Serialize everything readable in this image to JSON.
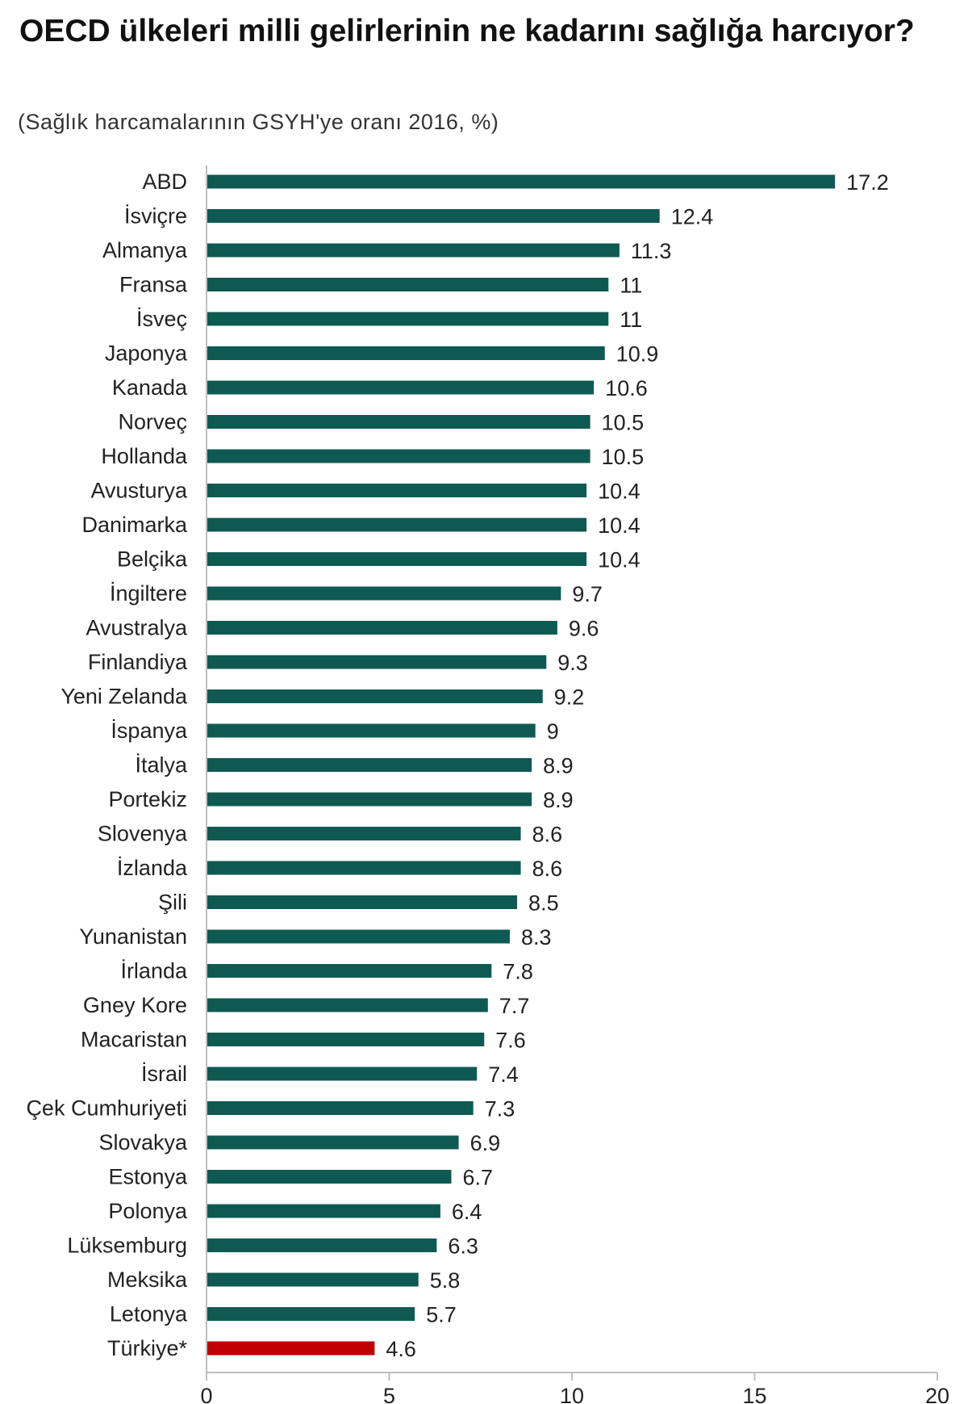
{
  "chart_data": {
    "type": "bar",
    "orientation": "horizontal",
    "title": "OECD ülkeleri milli gelirlerinin ne kadarını sağlığa harcıyor?",
    "subtitle": "(Sağlık harcamalarının GSYH'ye oranı 2016, %)",
    "xlim": [
      0,
      20
    ],
    "xticks": [
      0,
      5,
      10,
      15,
      20
    ],
    "colors": {
      "default": "#0e5a52",
      "highlight": "#c00000"
    },
    "categories": [
      "ABD",
      "İsviçre",
      "Almanya",
      "Fransa",
      "İsveç",
      "Japonya",
      "Kanada",
      "Norveç",
      "Hollanda",
      "Avusturya",
      "Danimarka",
      "Belçika",
      "İngiltere",
      "Avustralya",
      "Finlandiya",
      "Yeni Zelanda",
      "İspanya",
      "İtalya",
      "Portekiz",
      "Slovenya",
      "İzlanda",
      "Şili",
      "Yunanistan",
      "İrlanda",
      "Gney Kore",
      "Macaristan",
      "İsrail",
      "Çek Cumhuriyeti",
      "Slovakya",
      "Estonya",
      "Polonya",
      "Lüksemburg",
      "Meksika",
      "Letonya",
      "Türkiye*"
    ],
    "values": [
      17.2,
      12.4,
      11.3,
      11,
      11,
      10.9,
      10.6,
      10.5,
      10.5,
      10.4,
      10.4,
      10.4,
      9.7,
      9.6,
      9.3,
      9.2,
      9,
      8.9,
      8.9,
      8.6,
      8.6,
      8.5,
      8.3,
      7.8,
      7.7,
      7.6,
      7.4,
      7.3,
      6.9,
      6.7,
      6.4,
      6.3,
      5.8,
      5.7,
      4.6
    ],
    "highlight": "Türkiye*"
  }
}
